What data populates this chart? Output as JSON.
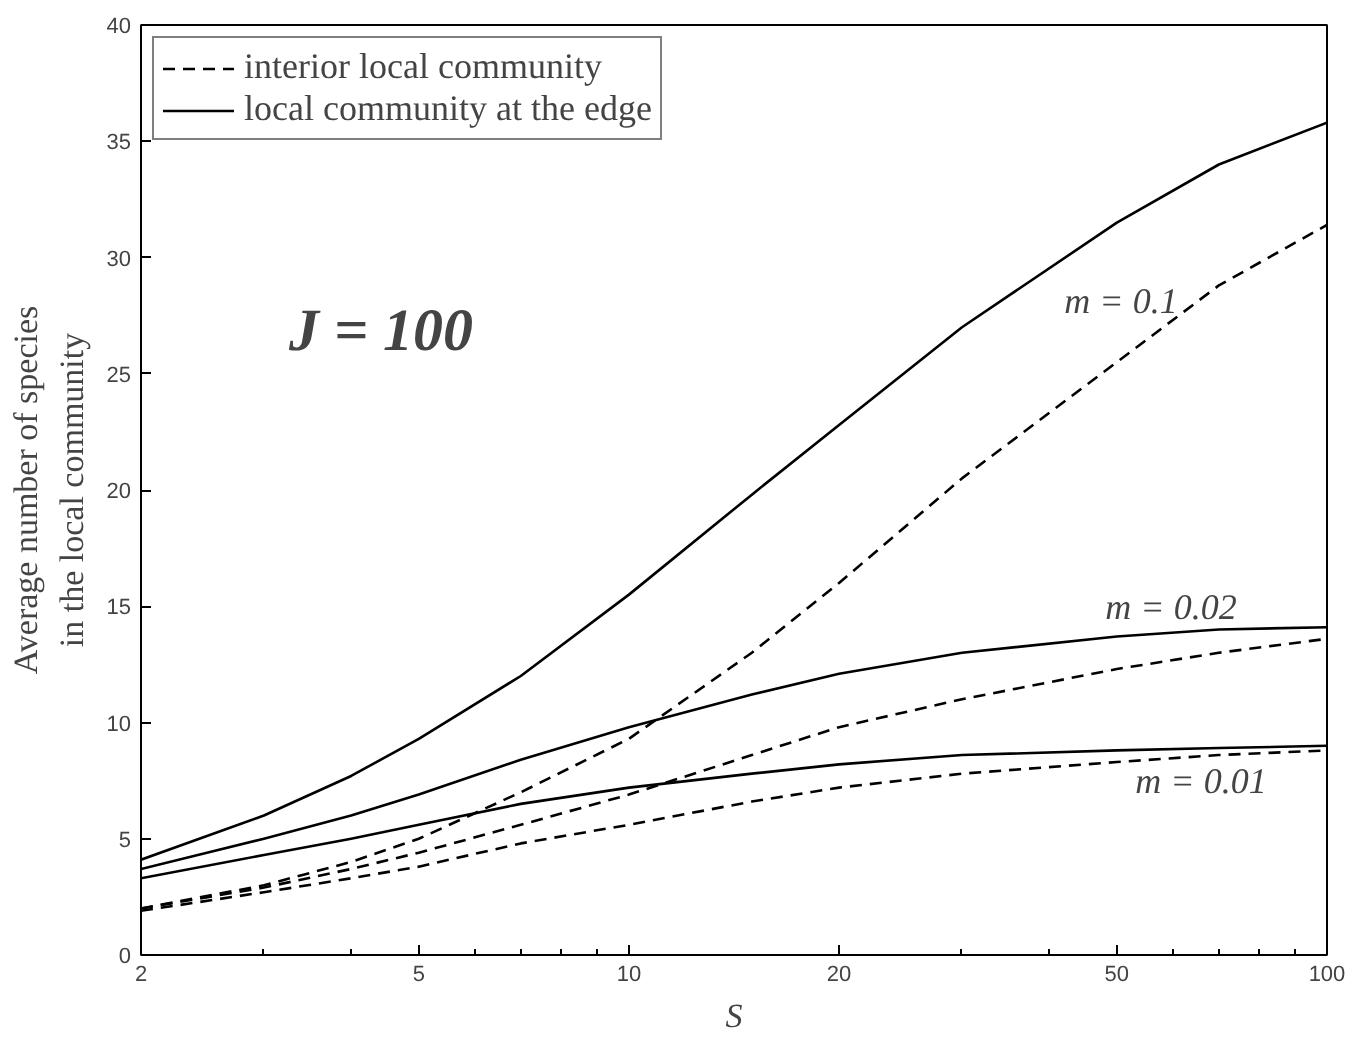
{
  "chart_data": {
    "type": "line",
    "xlabel": "S",
    "ylabel": "Average number of species\nin the local community",
    "x": [
      2,
      3,
      4,
      5,
      7,
      10,
      15,
      20,
      30,
      50,
      70,
      100
    ],
    "series": [
      {
        "name": "interior local community",
        "color": "#000000",
        "line_style": "dashed",
        "values": [
          2.0,
          3.0,
          4.0,
          5.0,
          7.0,
          9.3,
          13.0,
          16.0,
          20.5,
          25.5,
          28.8,
          31.4
        ]
      },
      {
        "name": "local community at the edge",
        "color": "#000000",
        "line_style": "solid",
        "values": [
          4.1,
          6.0,
          7.7,
          9.3,
          12.0,
          15.5,
          19.8,
          22.8,
          27.0,
          31.5,
          34.0,
          35.8
        ]
      },
      {
        "color": "#000000",
        "line_style": "dashed",
        "values": [
          2.0,
          2.9,
          3.7,
          4.4,
          5.6,
          6.9,
          8.6,
          9.8,
          11.0,
          12.3,
          13.0,
          13.6
        ]
      },
      {
        "color": "#000000",
        "line_style": "solid",
        "values": [
          3.7,
          5.0,
          6.0,
          6.9,
          8.4,
          9.8,
          11.2,
          12.1,
          13.0,
          13.7,
          14.0,
          14.1
        ]
      },
      {
        "color": "#000000",
        "line_style": "dashed",
        "values": [
          1.9,
          2.7,
          3.3,
          3.8,
          4.8,
          5.6,
          6.6,
          7.2,
          7.8,
          8.3,
          8.6,
          8.8
        ]
      },
      {
        "color": "#000000",
        "line_style": "solid",
        "values": [
          3.3,
          4.3,
          5.0,
          5.6,
          6.5,
          7.2,
          7.8,
          8.2,
          8.6,
          8.8,
          8.9,
          9.0
        ]
      }
    ],
    "annotations": [
      "J = 100",
      "m = 0.1",
      "m = 0.02",
      "m = 0.01"
    ],
    "log": "x",
    "xlim": [
      2,
      100
    ],
    "xticks": [
      2,
      5,
      10,
      20,
      50,
      100
    ],
    "ylim": [
      0,
      40
    ],
    "yticks": [
      0,
      5,
      10,
      15,
      20,
      25,
      30,
      35,
      40
    ],
    "grid": false,
    "legend": "top left",
    "marker": "none"
  }
}
